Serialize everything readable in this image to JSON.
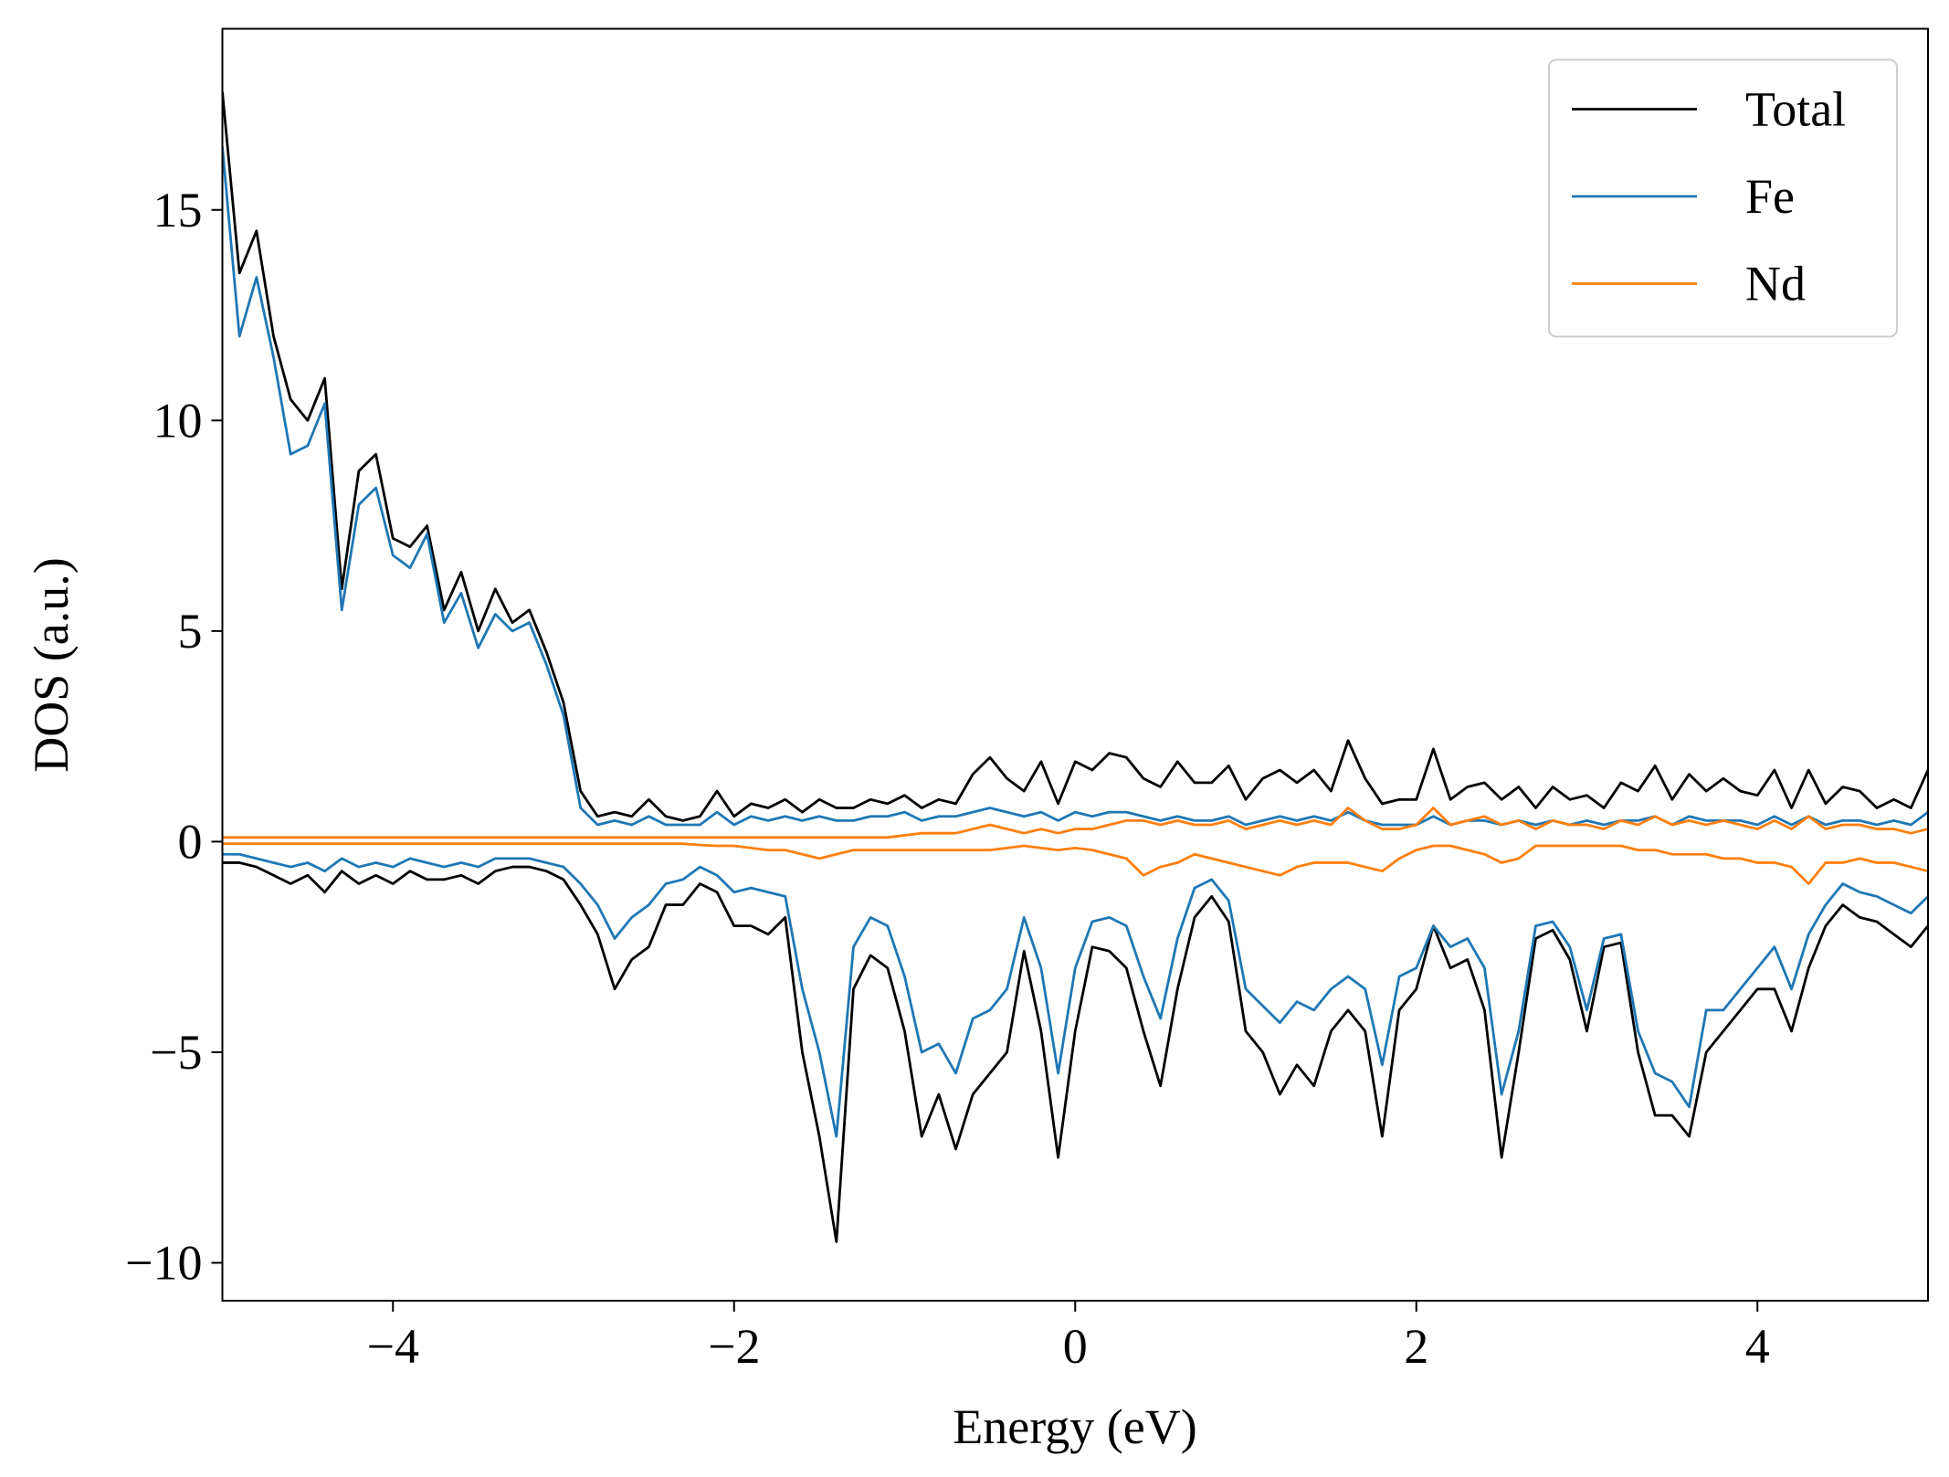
{
  "chart_data": {
    "type": "line",
    "x_label": "Energy (eV)",
    "y_label": "DOS (a.u.)",
    "x": [
      -5.0,
      -4.9,
      -4.8,
      -4.7,
      -4.6,
      -4.5,
      -4.4,
      -4.3,
      -4.2,
      -4.1,
      -4.0,
      -3.9,
      -3.8,
      -3.7,
      -3.6,
      -3.5,
      -3.4,
      -3.3,
      -3.2,
      -3.1,
      -3.0,
      -2.9,
      -2.8,
      -2.7,
      -2.6,
      -2.5,
      -2.4,
      -2.3,
      -2.2,
      -2.1,
      -2.0,
      -1.9,
      -1.8,
      -1.7,
      -1.6,
      -1.5,
      -1.4,
      -1.3,
      -1.2,
      -1.1,
      -1.0,
      -0.9,
      -0.8,
      -0.7,
      -0.6,
      -0.5,
      -0.4,
      -0.3,
      -0.2,
      -0.1,
      0.0,
      0.1,
      0.2,
      0.3,
      0.4,
      0.5,
      0.6,
      0.7,
      0.8,
      0.9,
      1.0,
      1.1,
      1.2,
      1.3,
      1.4,
      1.5,
      1.6,
      1.7,
      1.8,
      1.9,
      2.0,
      2.1,
      2.2,
      2.3,
      2.4,
      2.5,
      2.6,
      2.7,
      2.8,
      2.9,
      3.0,
      3.1,
      3.2,
      3.3,
      3.4,
      3.5,
      3.6,
      3.7,
      3.8,
      3.9,
      4.0,
      4.1,
      4.2,
      4.3,
      4.4,
      4.5,
      4.6,
      4.7,
      4.8,
      4.9,
      5.0
    ],
    "series": [
      {
        "name": "Total",
        "color": "#000000",
        "values": [
          17.8,
          13.5,
          14.5,
          12,
          10.5,
          10,
          11,
          6,
          8.8,
          9.2,
          7.2,
          7,
          7.5,
          5.5,
          6.4,
          5,
          6,
          5.2,
          5.5,
          4.5,
          3.3,
          1.2,
          0.6,
          0.7,
          0.6,
          1.0,
          0.6,
          0.5,
          0.6,
          1.2,
          0.6,
          0.9,
          0.8,
          1.0,
          0.7,
          1.0,
          0.8,
          0.8,
          1.0,
          0.9,
          1.1,
          0.8,
          1.0,
          0.9,
          1.6,
          2.0,
          1.5,
          1.2,
          1.9,
          0.9,
          1.9,
          1.7,
          2.1,
          2.0,
          1.5,
          1.3,
          1.9,
          1.4,
          1.4,
          1.8,
          1.0,
          1.5,
          1.7,
          1.4,
          1.7,
          1.2,
          2.4,
          1.5,
          0.9,
          1.0,
          1.0,
          2.2,
          1.0,
          1.3,
          1.4,
          1.0,
          1.3,
          0.8,
          1.3,
          1.0,
          1.1,
          0.8,
          1.4,
          1.2,
          1.8,
          1.0,
          1.6,
          1.2,
          1.5,
          1.2,
          1.1,
          1.7,
          0.8,
          1.7,
          0.9,
          1.3,
          1.2,
          0.8,
          1.0,
          0.8,
          1.7
        ],
        "values_down": [
          -0.5,
          -0.5,
          -0.6,
          -0.8,
          -1.0,
          -0.8,
          -1.2,
          -0.7,
          -1.0,
          -0.8,
          -1.0,
          -0.7,
          -0.9,
          -0.9,
          -0.8,
          -1.0,
          -0.7,
          -0.6,
          -0.6,
          -0.7,
          -0.9,
          -1.5,
          -2.2,
          -3.5,
          -2.8,
          -2.5,
          -1.5,
          -1.5,
          -1.0,
          -1.2,
          -2.0,
          -2.0,
          -2.2,
          -1.8,
          -5.0,
          -7.0,
          -9.5,
          -3.5,
          -2.7,
          -3.0,
          -4.5,
          -7.0,
          -6.0,
          -7.3,
          -6.0,
          -5.5,
          -5.0,
          -2.6,
          -4.5,
          -7.5,
          -4.5,
          -2.5,
          -2.6,
          -3.0,
          -4.5,
          -5.8,
          -3.5,
          -1.8,
          -1.3,
          -1.9,
          -4.5,
          -5.0,
          -6.0,
          -5.3,
          -5.8,
          -4.5,
          -4.0,
          -4.5,
          -7.0,
          -4.0,
          -3.5,
          -2.0,
          -3.0,
          -2.8,
          -4.0,
          -7.5,
          -5.0,
          -2.3,
          -2.1,
          -2.8,
          -4.5,
          -2.5,
          -2.4,
          -5.0,
          -6.5,
          -6.5,
          -7.0,
          -5.0,
          -4.5,
          -4.0,
          -3.5,
          -3.5,
          -4.5,
          -3.0,
          -2.0,
          -1.5,
          -1.8,
          -1.9,
          -2.2,
          -2.5,
          -2.0
        ]
      },
      {
        "name": "Fe",
        "color": "#1f77b4",
        "values": [
          16.5,
          12.0,
          13.4,
          11.5,
          9.2,
          9.4,
          10.4,
          5.5,
          8.0,
          8.4,
          6.8,
          6.5,
          7.3,
          5.2,
          5.9,
          4.6,
          5.4,
          5.0,
          5.2,
          4.2,
          3.0,
          0.8,
          0.4,
          0.5,
          0.4,
          0.6,
          0.4,
          0.4,
          0.4,
          0.7,
          0.4,
          0.6,
          0.5,
          0.6,
          0.5,
          0.6,
          0.5,
          0.5,
          0.6,
          0.6,
          0.7,
          0.5,
          0.6,
          0.6,
          0.7,
          0.8,
          0.7,
          0.6,
          0.7,
          0.5,
          0.7,
          0.6,
          0.7,
          0.7,
          0.6,
          0.5,
          0.6,
          0.5,
          0.5,
          0.6,
          0.4,
          0.5,
          0.6,
          0.5,
          0.6,
          0.5,
          0.7,
          0.5,
          0.4,
          0.4,
          0.4,
          0.6,
          0.4,
          0.5,
          0.5,
          0.4,
          0.5,
          0.4,
          0.5,
          0.4,
          0.5,
          0.4,
          0.5,
          0.5,
          0.6,
          0.4,
          0.6,
          0.5,
          0.5,
          0.5,
          0.4,
          0.6,
          0.4,
          0.6,
          0.4,
          0.5,
          0.5,
          0.4,
          0.5,
          0.4,
          0.7
        ],
        "values_down": [
          -0.3,
          -0.3,
          -0.4,
          -0.5,
          -0.6,
          -0.5,
          -0.7,
          -0.4,
          -0.6,
          -0.5,
          -0.6,
          -0.4,
          -0.5,
          -0.6,
          -0.5,
          -0.6,
          -0.4,
          -0.4,
          -0.4,
          -0.5,
          -0.6,
          -1.0,
          -1.5,
          -2.3,
          -1.8,
          -1.5,
          -1.0,
          -0.9,
          -0.6,
          -0.8,
          -1.2,
          -1.1,
          -1.2,
          -1.3,
          -3.5,
          -5.0,
          -7.0,
          -2.5,
          -1.8,
          -2.0,
          -3.2,
          -5.0,
          -4.8,
          -5.5,
          -4.2,
          -4.0,
          -3.5,
          -1.8,
          -3.0,
          -5.5,
          -3.0,
          -1.9,
          -1.8,
          -2.0,
          -3.2,
          -4.2,
          -2.3,
          -1.1,
          -0.9,
          -1.4,
          -3.5,
          -3.9,
          -4.3,
          -3.8,
          -4.0,
          -3.5,
          -3.2,
          -3.5,
          -5.3,
          -3.2,
          -3.0,
          -2.0,
          -2.5,
          -2.3,
          -3.0,
          -6.0,
          -4.5,
          -2.0,
          -1.9,
          -2.5,
          -4.0,
          -2.3,
          -2.2,
          -4.5,
          -5.5,
          -5.7,
          -6.3,
          -4.0,
          -4.0,
          -3.5,
          -3.0,
          -2.5,
          -3.5,
          -2.2,
          -1.5,
          -1.0,
          -1.2,
          -1.3,
          -1.5,
          -1.7,
          -1.3
        ]
      },
      {
        "name": "Nd",
        "color": "#ff7f0e",
        "values": [
          0.1,
          0.1,
          0.1,
          0.1,
          0.1,
          0.1,
          0.1,
          0.1,
          0.1,
          0.1,
          0.1,
          0.1,
          0.1,
          0.1,
          0.1,
          0.1,
          0.1,
          0.1,
          0.1,
          0.1,
          0.1,
          0.1,
          0.1,
          0.1,
          0.1,
          0.1,
          0.1,
          0.1,
          0.1,
          0.1,
          0.1,
          0.1,
          0.1,
          0.1,
          0.1,
          0.1,
          0.1,
          0.1,
          0.1,
          0.1,
          0.15,
          0.2,
          0.2,
          0.2,
          0.3,
          0.4,
          0.3,
          0.2,
          0.3,
          0.2,
          0.3,
          0.3,
          0.4,
          0.5,
          0.5,
          0.4,
          0.5,
          0.4,
          0.4,
          0.5,
          0.3,
          0.4,
          0.5,
          0.4,
          0.5,
          0.4,
          0.8,
          0.5,
          0.3,
          0.3,
          0.4,
          0.8,
          0.4,
          0.5,
          0.6,
          0.4,
          0.5,
          0.3,
          0.5,
          0.4,
          0.4,
          0.3,
          0.5,
          0.4,
          0.6,
          0.4,
          0.5,
          0.4,
          0.5,
          0.4,
          0.3,
          0.5,
          0.3,
          0.6,
          0.3,
          0.4,
          0.4,
          0.3,
          0.3,
          0.2,
          0.3
        ],
        "values_down": [
          -0.05,
          -0.05,
          -0.05,
          -0.05,
          -0.05,
          -0.05,
          -0.05,
          -0.05,
          -0.05,
          -0.05,
          -0.05,
          -0.05,
          -0.05,
          -0.05,
          -0.05,
          -0.05,
          -0.05,
          -0.05,
          -0.05,
          -0.05,
          -0.05,
          -0.05,
          -0.05,
          -0.05,
          -0.05,
          -0.05,
          -0.05,
          -0.05,
          -0.08,
          -0.1,
          -0.1,
          -0.15,
          -0.2,
          -0.2,
          -0.3,
          -0.4,
          -0.3,
          -0.2,
          -0.2,
          -0.2,
          -0.2,
          -0.2,
          -0.2,
          -0.2,
          -0.2,
          -0.2,
          -0.15,
          -0.1,
          -0.15,
          -0.2,
          -0.15,
          -0.2,
          -0.3,
          -0.4,
          -0.8,
          -0.6,
          -0.5,
          -0.3,
          -0.4,
          -0.5,
          -0.6,
          -0.7,
          -0.8,
          -0.6,
          -0.5,
          -0.5,
          -0.5,
          -0.6,
          -0.7,
          -0.4,
          -0.2,
          -0.1,
          -0.1,
          -0.2,
          -0.3,
          -0.5,
          -0.4,
          -0.1,
          -0.1,
          -0.1,
          -0.1,
          -0.1,
          -0.1,
          -0.2,
          -0.2,
          -0.3,
          -0.3,
          -0.3,
          -0.4,
          -0.4,
          -0.5,
          -0.5,
          -0.6,
          -1.0,
          -0.5,
          -0.5,
          -0.4,
          -0.5,
          -0.5,
          -0.6,
          -0.7
        ]
      }
    ],
    "xlim": [
      -5,
      5
    ],
    "ylim": [
      -10.9,
      19.3
    ],
    "xticks": [
      {
        "value": -4,
        "label": "−4"
      },
      {
        "value": -2,
        "label": "−2"
      },
      0,
      2,
      4
    ],
    "yticks": [
      {
        "value": -10,
        "label": "−10"
      },
      {
        "value": -5,
        "label": "−5"
      },
      0,
      5,
      10,
      15
    ],
    "grid": false,
    "legend": "upper right"
  }
}
